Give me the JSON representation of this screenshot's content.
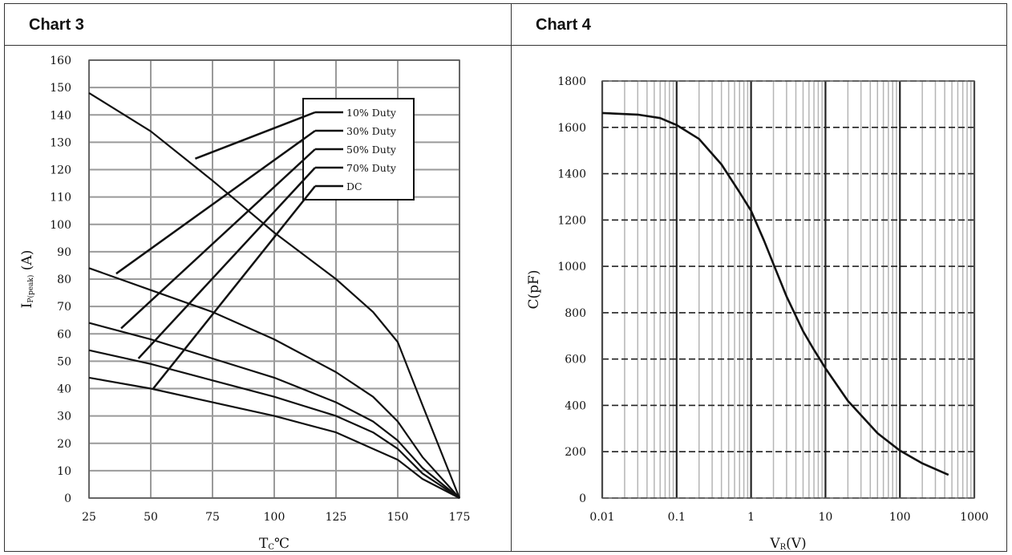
{
  "panels": [
    {
      "title": "Chart 3"
    },
    {
      "title": "Chart 4"
    }
  ],
  "chart_data": [
    {
      "type": "line",
      "title": "Chart 3",
      "xlabel": "TcºC",
      "xlabel_main": "T",
      "xlabel_sub": "C",
      "xlabel_tail": "℃",
      "ylabel": "IP(peak) (A)",
      "ylabel_main": "I",
      "ylabel_sub": "P(peak)",
      "ylabel_tail": "(A)",
      "xlim": [
        25,
        175
      ],
      "ylim": [
        0,
        160
      ],
      "xticks": [
        25,
        50,
        75,
        100,
        125,
        150,
        175
      ],
      "yticks": [
        0,
        10,
        20,
        30,
        40,
        50,
        60,
        70,
        80,
        90,
        100,
        110,
        120,
        130,
        140,
        150,
        160
      ],
      "grid": true,
      "legend_position": "top-right",
      "series": [
        {
          "name": "10% Duty",
          "x": [
            25,
            50,
            75,
            100,
            125,
            140,
            150,
            160,
            175
          ],
          "y": [
            148,
            134,
            116,
            97,
            80,
            68,
            57,
            34,
            0
          ]
        },
        {
          "name": "30% Duty",
          "x": [
            25,
            50,
            75,
            100,
            125,
            140,
            150,
            160,
            175
          ],
          "y": [
            84,
            76,
            68,
            58,
            46,
            37,
            28,
            15,
            0
          ]
        },
        {
          "name": "50% Duty",
          "x": [
            25,
            50,
            75,
            100,
            125,
            140,
            150,
            160,
            175
          ],
          "y": [
            64,
            58,
            51,
            44,
            35,
            28,
            21,
            11,
            0
          ]
        },
        {
          "name": "70% Duty",
          "x": [
            25,
            50,
            75,
            100,
            125,
            140,
            150,
            160,
            175
          ],
          "y": [
            54,
            49,
            43,
            37,
            30,
            24,
            18,
            9,
            0
          ]
        },
        {
          "name": "DC",
          "x": [
            25,
            50,
            75,
            100,
            125,
            140,
            150,
            160,
            175
          ],
          "y": [
            44,
            40,
            35,
            30,
            24,
            18,
            14,
            7,
            0
          ]
        }
      ],
      "legend_pointers": [
        {
          "series": "10% Duty",
          "x": 68,
          "y": 124
        },
        {
          "series": "30% Duty",
          "x": 36,
          "y": 82
        },
        {
          "series": "50% Duty",
          "x": 38,
          "y": 62
        },
        {
          "series": "70% Duty",
          "x": 45,
          "y": 51
        },
        {
          "series": "DC",
          "x": 51,
          "y": 40
        }
      ]
    },
    {
      "type": "line",
      "title": "Chart 4",
      "xlabel": "VR(V)",
      "xlabel_main": "V",
      "xlabel_sub": "R",
      "xlabel_tail": "(V)",
      "ylabel": "C(pF)",
      "xscale": "log",
      "xlim": [
        0.01,
        1000
      ],
      "ylim": [
        0,
        1800
      ],
      "xticks": [
        0.01,
        0.1,
        1,
        10,
        100,
        1000
      ],
      "xticklabels": [
        "0.01",
        "0.1",
        "1",
        "10",
        "100",
        "1000"
      ],
      "yticks": [
        0,
        200,
        400,
        600,
        800,
        1000,
        1200,
        1400,
        1600,
        1800
      ],
      "grid": true,
      "series": [
        {
          "x": [
            0.01,
            0.03,
            0.06,
            0.1,
            0.2,
            0.4,
            0.7,
            1,
            1.5,
            2,
            3,
            5,
            7,
            10,
            20,
            50,
            100,
            200,
            450
          ],
          "y": [
            1662,
            1655,
            1640,
            1610,
            1550,
            1440,
            1320,
            1240,
            1110,
            1010,
            870,
            720,
            640,
            560,
            420,
            280,
            205,
            150,
            100
          ]
        }
      ]
    }
  ]
}
